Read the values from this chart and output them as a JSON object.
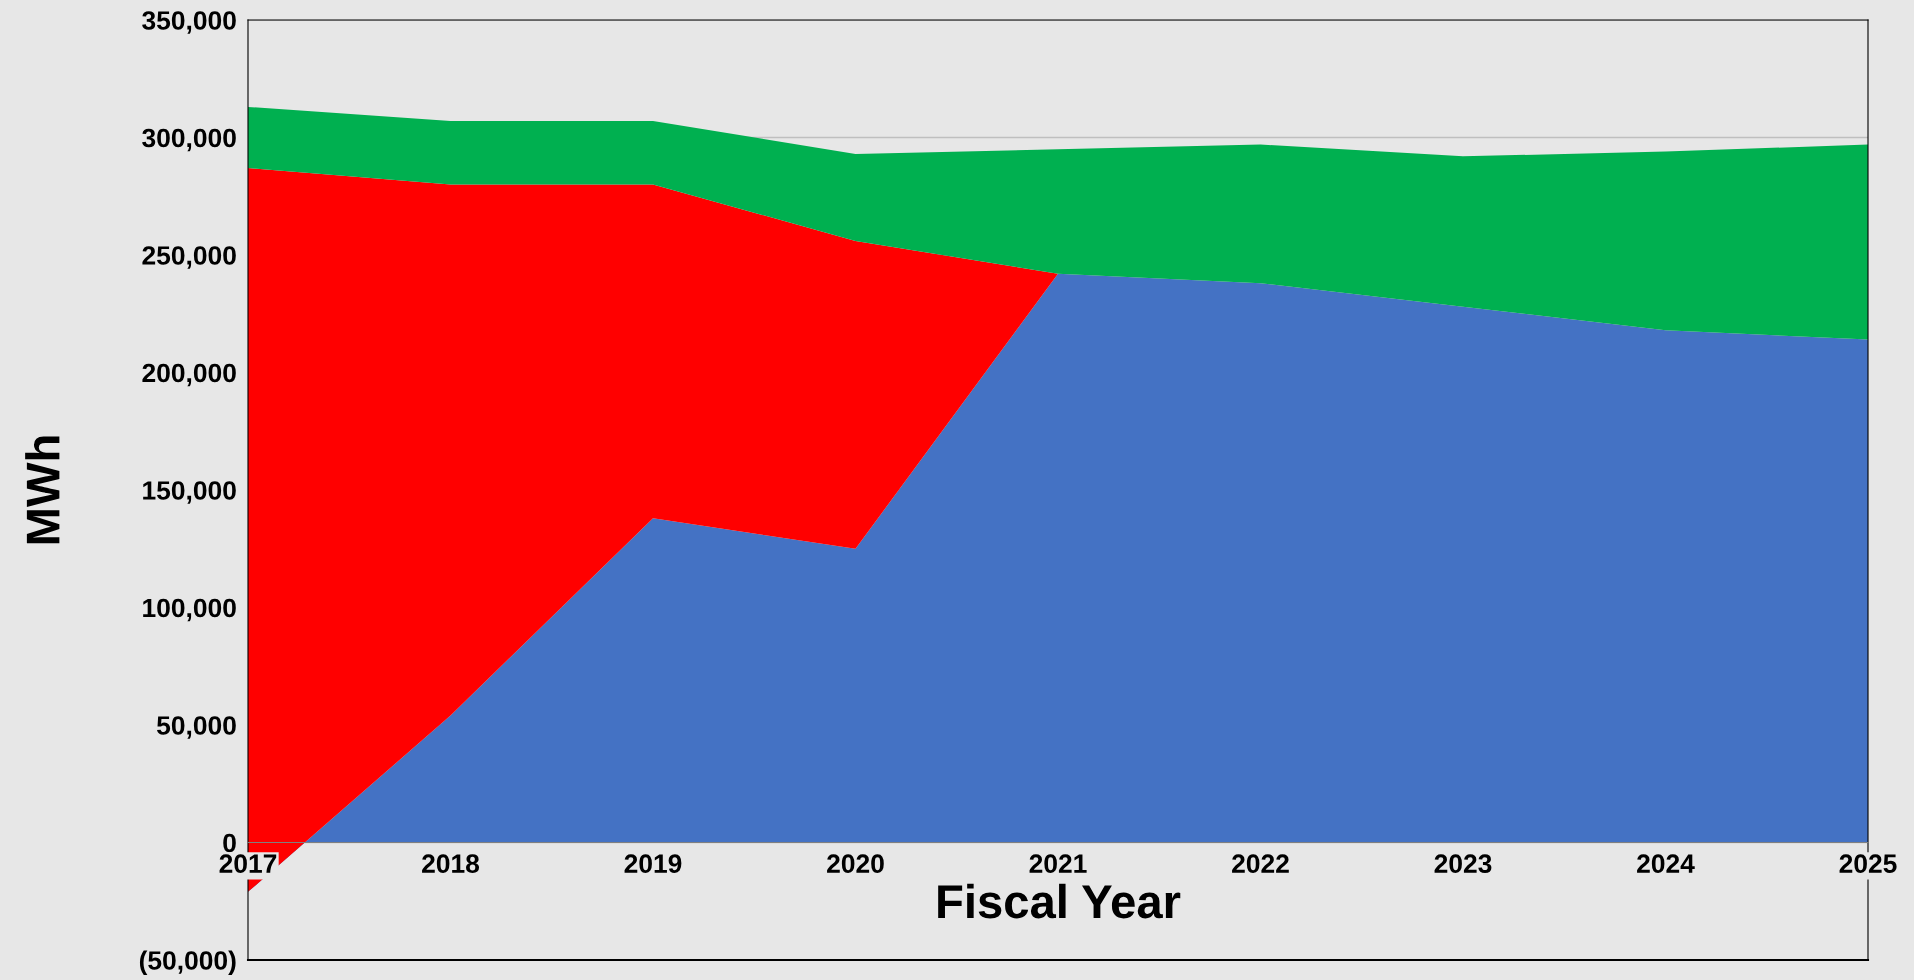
{
  "chart_data": {
    "type": "area",
    "stacked": true,
    "xlabel": "Fiscal Year",
    "ylabel": "MWh",
    "x": [
      2017,
      2018,
      2019,
      2020,
      2021,
      2022,
      2023,
      2024,
      2025
    ],
    "series": [
      {
        "color": "#4472c4",
        "values": [
          -21000,
          54000,
          138000,
          125000,
          242000,
          238000,
          228000,
          218000,
          214000
        ]
      },
      {
        "color": "#ff0000",
        "values": [
          308000,
          226000,
          142000,
          131000,
          0,
          0,
          0,
          0,
          0
        ]
      },
      {
        "color": "#00b050",
        "values": [
          26000,
          27000,
          27000,
          37000,
          53000,
          59000,
          64000,
          76000,
          83000
        ]
      }
    ],
    "xlim": [
      2017,
      2025
    ],
    "xticks": [
      2017,
      2018,
      2019,
      2020,
      2021,
      2022,
      2023,
      2024,
      2025
    ],
    "ylim": [
      -50000,
      350000
    ],
    "yticks": [
      {
        "value": -50000,
        "label": "(50,000)"
      },
      0,
      {
        "value": 50000,
        "label": "50,000"
      },
      {
        "value": 100000,
        "label": "100,000"
      },
      {
        "value": 150000,
        "label": "150,000"
      },
      {
        "value": 200000,
        "label": "200,000"
      },
      {
        "value": 250000,
        "label": "250,000"
      },
      {
        "value": 300000,
        "label": "300,000"
      },
      {
        "value": 350000,
        "label": "350,000"
      }
    ],
    "grid": "y"
  }
}
